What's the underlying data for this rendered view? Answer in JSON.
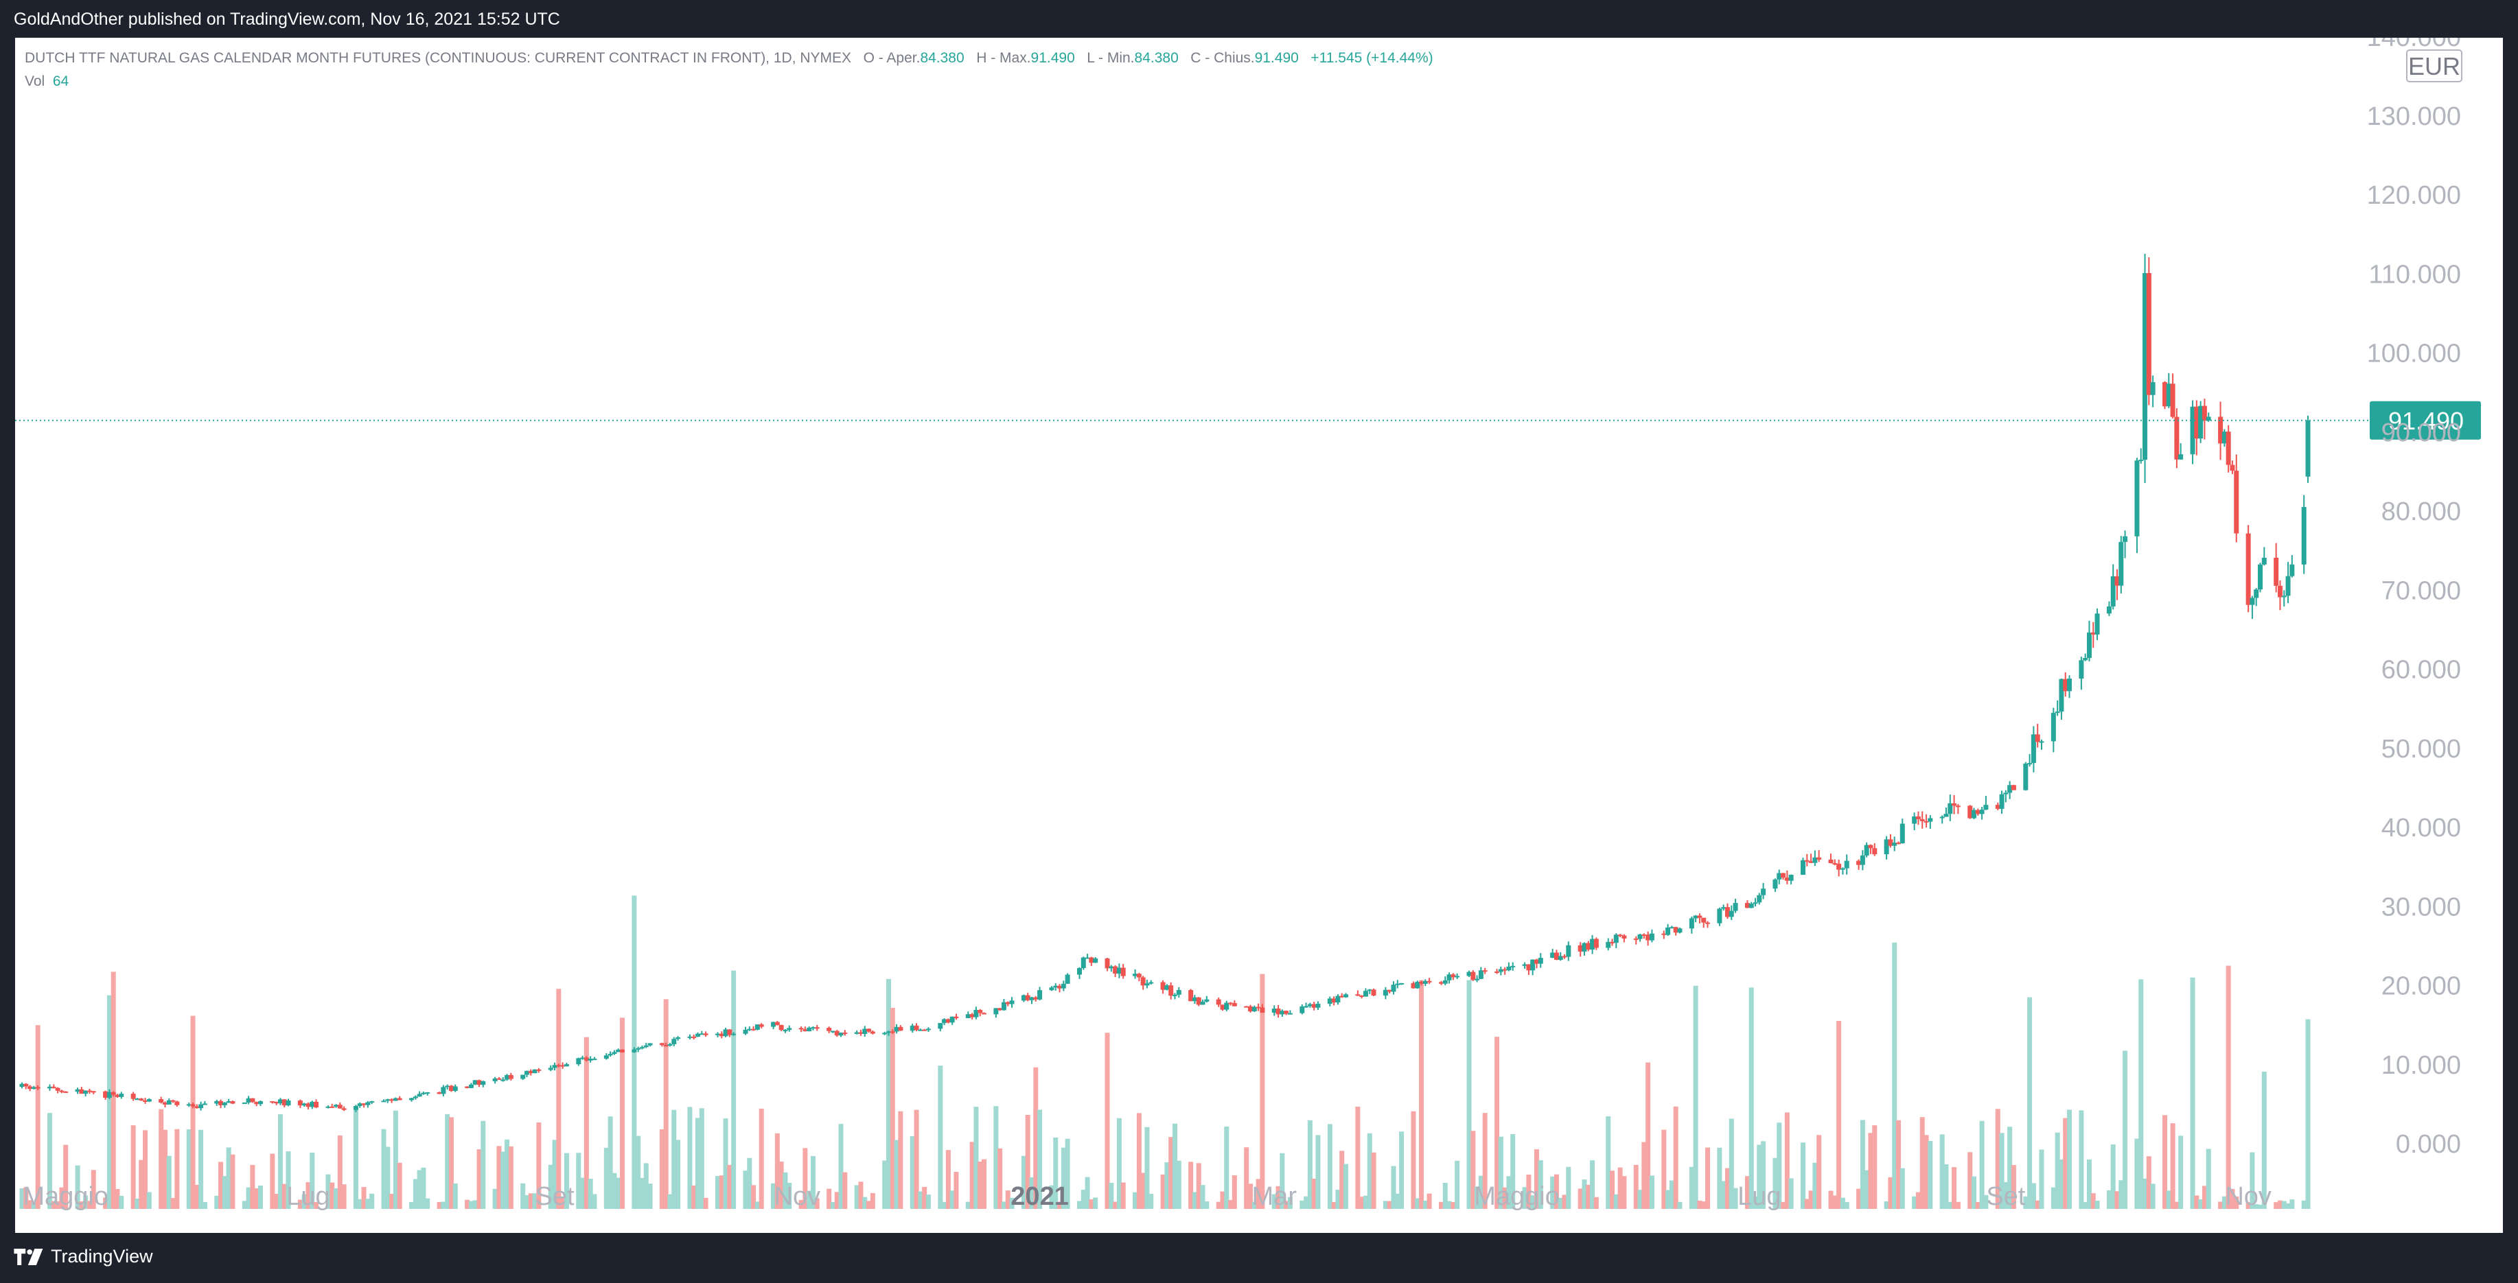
{
  "header": {
    "published": "GoldAndOther published on TradingView.com, Nov 16, 2021 15:52 UTC"
  },
  "legend": {
    "title": "DUTCH TTF NATURAL GAS CALENDAR MONTH FUTURES (CONTINUOUS: CURRENT CONTRACT IN FRONT), 1D, NYMEX",
    "o_label": "O - Aper.",
    "o_value": "84.380",
    "h_label": "H - Max.",
    "h_value": "91.490",
    "l_label": "L - Min.",
    "l_value": "84.380",
    "c_label": "C - Chius.",
    "c_value": "91.490",
    "change": "+11.545 (+14.44%)",
    "vol_label": "Vol",
    "vol_value": "64"
  },
  "footer": {
    "brand": "TradingView"
  },
  "colors": {
    "up": "#26a69a",
    "down": "#ef5350",
    "up_vol": "#9fd9d2",
    "down_vol": "#f6a7a5",
    "axis_text": "#b2b5be"
  },
  "chart_data": {
    "type": "candlestick",
    "title": "DUTCH TTF NATURAL GAS CALENDAR MONTH FUTURES (CONTINUOUS: CURRENT CONTRACT IN FRONT), 1D, NYMEX",
    "currency": "EUR",
    "last_price": "91.490",
    "ylim": [
      -4,
      140
    ],
    "y_ticks": [
      "0.000",
      "10.000",
      "20.000",
      "30.000",
      "40.000",
      "50.000",
      "60.000",
      "70.000",
      "80.000",
      "90.000",
      "100.000",
      "110.000",
      "120.000",
      "130.000",
      "140.000"
    ],
    "x_ticks": [
      {
        "label": "Maggio",
        "date": "2020-05-01",
        "bold": false
      },
      {
        "label": "Lug",
        "date": "2020-07-01",
        "bold": false
      },
      {
        "label": "Set",
        "date": "2020-09-01",
        "bold": false
      },
      {
        "label": "Nov",
        "date": "2020-11-01",
        "bold": false
      },
      {
        "label": "2021",
        "date": "2021-01-01",
        "bold": true
      },
      {
        "label": "Mar",
        "date": "2021-03-01",
        "bold": false
      },
      {
        "label": "Maggio",
        "date": "2021-05-01",
        "bold": false
      },
      {
        "label": "Lug",
        "date": "2021-07-01",
        "bold": false
      },
      {
        "label": "Set",
        "date": "2021-09-01",
        "bold": false
      },
      {
        "label": "Nov",
        "date": "2021-11-01",
        "bold": false
      }
    ],
    "x_range": [
      "2020-04-20",
      "2021-11-16"
    ],
    "price_anchors": [
      [
        "2020-04-20",
        7.2
      ],
      [
        "2020-05-15",
        6.0
      ],
      [
        "2020-06-01",
        4.8
      ],
      [
        "2020-06-20",
        5.5
      ],
      [
        "2020-07-10",
        4.5
      ],
      [
        "2020-08-01",
        6.5
      ],
      [
        "2020-08-20",
        8.5
      ],
      [
        "2020-09-10",
        11.0
      ],
      [
        "2020-10-01",
        13.0
      ],
      [
        "2020-10-25",
        15.0
      ],
      [
        "2020-11-10",
        14.0
      ],
      [
        "2020-12-01",
        14.5
      ],
      [
        "2020-12-20",
        17.0
      ],
      [
        "2021-01-05",
        19.5
      ],
      [
        "2021-01-12",
        23.5
      ],
      [
        "2021-01-25",
        21.0
      ],
      [
        "2021-02-10",
        18.0
      ],
      [
        "2021-02-28",
        16.5
      ],
      [
        "2021-03-20",
        18.5
      ],
      [
        "2021-04-10",
        20.5
      ],
      [
        "2021-05-01",
        22.0
      ],
      [
        "2021-05-20",
        25.5
      ],
      [
        "2021-06-10",
        27.0
      ],
      [
        "2021-06-30",
        31.0
      ],
      [
        "2021-07-10",
        35.0
      ],
      [
        "2021-07-25",
        36.0
      ],
      [
        "2021-08-15",
        42.0
      ],
      [
        "2021-08-31",
        43.0
      ],
      [
        "2021-09-10",
        52.0
      ],
      [
        "2021-09-20",
        62.0
      ],
      [
        "2021-09-28",
        70.0
      ],
      [
        "2021-10-05",
        88.0
      ],
      [
        "2021-10-06",
        112.0
      ],
      [
        "2021-10-07",
        97.0
      ],
      [
        "2021-10-12",
        94.0
      ],
      [
        "2021-10-15",
        87.0
      ],
      [
        "2021-10-20",
        93.0
      ],
      [
        "2021-10-26",
        89.0
      ],
      [
        "2021-11-02",
        67.0
      ],
      [
        "2021-11-05",
        76.0
      ],
      [
        "2021-11-10",
        70.0
      ],
      [
        "2021-11-15",
        80.0
      ],
      [
        "2021-11-16",
        91.49
      ]
    ],
    "volume_description": "volume bars (EUR value axis shared), mostly 0–30k range, colored by candle direction"
  }
}
